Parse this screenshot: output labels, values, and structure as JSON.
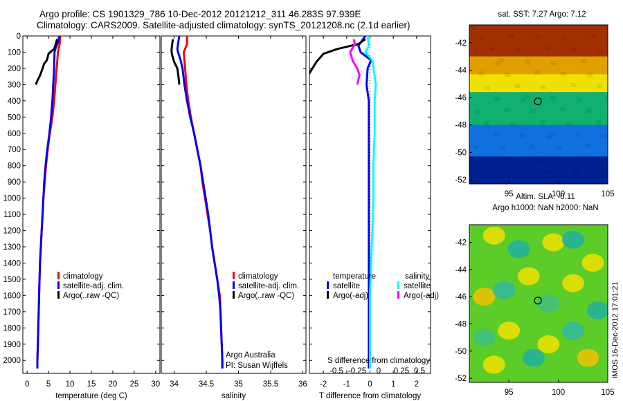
{
  "header": {
    "title_line1": "Argo profile: CS 1901329_786 10-Dec-2012 20121212_311 46.283S 97.939E",
    "title_line2": "Climatology: CARS2009. Satellite-adjusted climatology: synTS_20121208.nc (2.1d earlier)"
  },
  "side_note": "IMOS 16-Dec-2012 17:01:21",
  "colors": {
    "climatology": "#ff0000",
    "satellite": "#0000ff",
    "argo": "#000000",
    "sal_satellite": "#00ffff",
    "sal_argo": "#ff00ff"
  },
  "chart_data": [
    {
      "id": "temperature",
      "type": "line",
      "xlabel": "temperature (deg C)",
      "xlim": [
        -1,
        31
      ],
      "ylim": [
        0,
        2080
      ],
      "y_reversed": true,
      "xticks": [
        0,
        5,
        10,
        15,
        20,
        25,
        30
      ],
      "xtick_labels": [
        "0",
        "5",
        "10",
        "15",
        "20",
        "25",
        "30"
      ],
      "yticks": [
        0,
        100,
        200,
        300,
        400,
        500,
        600,
        700,
        800,
        900,
        1000,
        1100,
        1200,
        1300,
        1400,
        1500,
        1600,
        1700,
        1800,
        1900,
        2000
      ],
      "ytick_labels": [
        "0",
        "100",
        "200",
        "300",
        "400",
        "500",
        "600",
        "700",
        "800",
        "900",
        "1000",
        "1100",
        "1200",
        "1300",
        "1400",
        "1500",
        "1600",
        "1700",
        "1800",
        "1900",
        "2000"
      ],
      "legend": [
        "climatology",
        "satellite-adj. clim.",
        "Argo(..raw -QC)"
      ],
      "series": [
        {
          "name": "climatology",
          "color": "climatology",
          "points": [
            [
              7.7,
              0
            ],
            [
              7.6,
              50
            ],
            [
              7.2,
              100
            ],
            [
              6.9,
              200
            ],
            [
              6.6,
              300
            ],
            [
              6.3,
              400
            ],
            [
              5.9,
              500
            ],
            [
              5.3,
              600
            ],
            [
              4.8,
              700
            ],
            [
              4.4,
              800
            ],
            [
              4.1,
              900
            ],
            [
              3.8,
              1000
            ],
            [
              3.6,
              1100
            ],
            [
              3.4,
              1200
            ],
            [
              3.2,
              1300
            ],
            [
              3.0,
              1400
            ],
            [
              2.9,
              1500
            ],
            [
              2.8,
              1600
            ],
            [
              2.7,
              1700
            ],
            [
              2.6,
              1800
            ],
            [
              2.5,
              1900
            ],
            [
              2.4,
              2000
            ],
            [
              2.4,
              2050
            ]
          ]
        },
        {
          "name": "satellite-adj. clim.",
          "color": "satellite",
          "points": [
            [
              7.5,
              0
            ],
            [
              7.3,
              30
            ],
            [
              6.9,
              60
            ],
            [
              6.6,
              80
            ],
            [
              6.4,
              100
            ],
            [
              6.3,
              200
            ],
            [
              6.1,
              300
            ],
            [
              5.9,
              400
            ],
            [
              5.6,
              500
            ],
            [
              5.2,
              600
            ],
            [
              4.7,
              700
            ],
            [
              4.3,
              800
            ],
            [
              4.0,
              900
            ],
            [
              3.8,
              1000
            ],
            [
              3.6,
              1100
            ],
            [
              3.4,
              1200
            ],
            [
              3.2,
              1300
            ],
            [
              3.0,
              1400
            ],
            [
              2.9,
              1500
            ],
            [
              2.8,
              1600
            ],
            [
              2.7,
              1700
            ],
            [
              2.6,
              1800
            ],
            [
              2.5,
              1900
            ],
            [
              2.4,
              2000
            ],
            [
              2.4,
              2050
            ]
          ]
        },
        {
          "name": "Argo(..raw -QC)",
          "color": "argo",
          "points": [
            [
              7.0,
              20
            ],
            [
              6.7,
              50
            ],
            [
              6.3,
              80
            ],
            [
              5.4,
              100
            ],
            [
              5.0,
              110
            ],
            [
              4.6,
              150
            ],
            [
              4.0,
              170
            ],
            [
              3.6,
              200
            ],
            [
              3.2,
              230
            ],
            [
              2.9,
              250
            ],
            [
              2.5,
              270
            ],
            [
              2.0,
              300
            ]
          ]
        }
      ]
    },
    {
      "id": "salinity",
      "type": "line",
      "xlabel": "salinity",
      "xlim": [
        33.8,
        36.05
      ],
      "ylim": [
        0,
        2080
      ],
      "y_reversed": true,
      "xticks": [
        34,
        34.5,
        35,
        35.5,
        36
      ],
      "xtick_labels": [
        "34",
        "34.5",
        "35",
        "35.5",
        "36"
      ],
      "legend": [
        "climatology",
        "satellite-adj. clim.",
        "Argo(..raw -QC)"
      ],
      "annotation": [
        "Argo Australia",
        "PI: Susan Wijffels"
      ],
      "series": [
        {
          "name": "climatology",
          "color": "climatology",
          "points": [
            [
              34.2,
              0
            ],
            [
              34.2,
              50
            ],
            [
              34.15,
              100
            ],
            [
              34.16,
              150
            ],
            [
              34.17,
              200
            ],
            [
              34.19,
              300
            ],
            [
              34.22,
              400
            ],
            [
              34.26,
              500
            ],
            [
              34.31,
              600
            ],
            [
              34.36,
              700
            ],
            [
              34.41,
              800
            ],
            [
              34.44,
              900
            ],
            [
              34.48,
              1000
            ],
            [
              34.52,
              1100
            ],
            [
              34.56,
              1200
            ],
            [
              34.59,
              1300
            ],
            [
              34.63,
              1400
            ],
            [
              34.67,
              1500
            ],
            [
              34.71,
              1600
            ],
            [
              34.72,
              1700
            ],
            [
              34.73,
              1800
            ],
            [
              34.74,
              1900
            ],
            [
              34.75,
              2000
            ],
            [
              34.75,
              2050
            ]
          ]
        },
        {
          "name": "satellite-adj. clim.",
          "color": "satellite",
          "points": [
            [
              34.08,
              0
            ],
            [
              34.06,
              50
            ],
            [
              34.05,
              80
            ],
            [
              34.06,
              100
            ],
            [
              34.1,
              150
            ],
            [
              34.13,
              200
            ],
            [
              34.16,
              300
            ],
            [
              34.2,
              400
            ],
            [
              34.25,
              500
            ],
            [
              34.31,
              600
            ],
            [
              34.36,
              700
            ],
            [
              34.41,
              800
            ],
            [
              34.45,
              900
            ],
            [
              34.49,
              1000
            ],
            [
              34.53,
              1100
            ],
            [
              34.56,
              1200
            ],
            [
              34.59,
              1300
            ],
            [
              34.63,
              1400
            ],
            [
              34.67,
              1500
            ],
            [
              34.7,
              1600
            ],
            [
              34.72,
              1700
            ],
            [
              34.73,
              1800
            ],
            [
              34.74,
              1900
            ],
            [
              34.75,
              2000
            ],
            [
              34.75,
              2050
            ]
          ]
        },
        {
          "name": "Argo(..raw -QC)",
          "color": "argo",
          "points": [
            [
              33.98,
              20
            ],
            [
              33.97,
              50
            ],
            [
              33.96,
              80
            ],
            [
              33.96,
              100
            ],
            [
              33.97,
              120
            ],
            [
              34.0,
              160
            ],
            [
              34.05,
              200
            ],
            [
              34.06,
              230
            ],
            [
              34.07,
              260
            ],
            [
              34.08,
              300
            ]
          ]
        }
      ]
    },
    {
      "id": "difference",
      "type": "line",
      "xlabel": "T difference from climatology",
      "xlabel_top": "S difference from climatology",
      "xlim": [
        -2.6,
        2.6
      ],
      "ylim": [
        0,
        2080
      ],
      "y_reversed": true,
      "xticks": [
        -2,
        -1,
        0,
        1,
        2
      ],
      "xtick_labels": [
        "-2",
        "-1",
        "0",
        "1",
        "2"
      ],
      "s_ticks": [
        "-0.5",
        "-0.25",
        "0",
        "0.25",
        "0.5"
      ],
      "legend_temperature_title": "temperature",
      "legend_salinity_title": "salinity",
      "legend_temperature": [
        "satellite",
        "Argo(-adj)"
      ],
      "legend_salinity": [
        "satellite",
        "Argo(-adj)"
      ],
      "series": [
        {
          "name": "satellite",
          "color": "satellite",
          "points": [
            [
              -0.2,
              0
            ],
            [
              -0.5,
              60
            ],
            [
              -0.4,
              100
            ],
            [
              0.05,
              150
            ],
            [
              -0.1,
              200
            ],
            [
              -0.15,
              300
            ],
            [
              -0.05,
              400
            ],
            [
              -0.05,
              500
            ],
            [
              -0.05,
              600
            ],
            [
              -0.05,
              800
            ],
            [
              -0.05,
              1000
            ],
            [
              -0.05,
              1200
            ],
            [
              -0.05,
              1400
            ],
            [
              -0.05,
              1600
            ],
            [
              -0.05,
              1800
            ],
            [
              -0.05,
              2050
            ]
          ]
        },
        {
          "name": "Argo(-adj)",
          "color": "argo",
          "points": [
            [
              -0.2,
              20
            ],
            [
              -0.5,
              50
            ],
            [
              -1.4,
              80
            ],
            [
              -2.0,
              110
            ],
            [
              -2.3,
              160
            ],
            [
              -2.6,
              230
            ],
            [
              -2.9,
              300
            ]
          ]
        },
        {
          "name": "satellite",
          "color": "sal_satellite",
          "points": [
            [
              -0.1,
              0
            ],
            [
              -0.05,
              60
            ],
            [
              -0.2,
              100
            ],
            [
              0.1,
              150
            ],
            [
              0.25,
              300
            ],
            [
              0.2,
              400
            ],
            [
              0.2,
              600
            ],
            [
              0.15,
              800
            ],
            [
              0.15,
              1000
            ],
            [
              0.1,
              1200
            ],
            [
              0.05,
              1400
            ],
            [
              0.0,
              1600
            ],
            [
              0.0,
              1800
            ],
            [
              0.0,
              2050
            ]
          ]
        },
        {
          "name": "Argo(-adj)",
          "color": "sal_argo",
          "points": [
            [
              -0.7,
              20
            ],
            [
              -0.65,
              50
            ],
            [
              -0.85,
              100
            ],
            [
              -0.75,
              150
            ],
            [
              -0.55,
              200
            ],
            [
              -0.45,
              240
            ],
            [
              -0.55,
              300
            ]
          ]
        }
      ]
    },
    {
      "id": "sst_map",
      "type": "heatmap",
      "title": "sat. SST: 7.27 Argo: 7.12",
      "xlim": [
        91,
        105
      ],
      "ylim": [
        -52.3,
        -40.7
      ],
      "xticks": [
        95,
        100,
        105
      ],
      "xtick_labels": [
        "95",
        "100",
        "105"
      ],
      "yticks": [
        -42,
        -44,
        -46,
        -48,
        -50,
        -52
      ],
      "ytick_labels": [
        "-42",
        "-44",
        "-46",
        "-48",
        "-50",
        "-52"
      ],
      "marker": [
        97.939,
        -46.283
      ],
      "bands": [
        {
          "from": -40.7,
          "to": -43.0,
          "color": "#a03000"
        },
        {
          "from": -43.0,
          "to": -44.3,
          "color": "#e0a000"
        },
        {
          "from": -44.3,
          "to": -45.6,
          "color": "#f0e000"
        },
        {
          "from": -45.6,
          "to": -48.0,
          "color": "#10b070"
        },
        {
          "from": -48.0,
          "to": -50.3,
          "color": "#1070e0"
        },
        {
          "from": -50.3,
          "to": -52.3,
          "color": "#002090"
        }
      ]
    },
    {
      "id": "sla_map",
      "type": "heatmap",
      "title": "Altim. SLA: -0.11",
      "subtitle": "Argo h1000: NaN h2000: NaN",
      "xlim": [
        91,
        105
      ],
      "ylim": [
        -52.3,
        -40.7
      ],
      "xticks": [
        95,
        100,
        105
      ],
      "xtick_labels": [
        "95",
        "100",
        "105"
      ],
      "yticks": [
        -42,
        -44,
        -46,
        -48,
        -50,
        -52
      ],
      "ytick_labels": [
        "-42",
        "-44",
        "-46",
        "-48",
        "-50",
        "-52"
      ],
      "marker": [
        97.939,
        -46.283
      ],
      "background_color": "#5ccc28",
      "blobs": [
        {
          "lon": 93.5,
          "lat": -41.5,
          "color": "#f0e000"
        },
        {
          "lon": 99.5,
          "lat": -42.0,
          "color": "#f0e000"
        },
        {
          "lon": 103.5,
          "lat": -43.5,
          "color": "#f0e000"
        },
        {
          "lon": 97.0,
          "lat": -44.5,
          "color": "#f0e000"
        },
        {
          "lon": 92.5,
          "lat": -46.0,
          "color": "#f0c000"
        },
        {
          "lon": 101.5,
          "lat": -45.0,
          "color": "#f0e000"
        },
        {
          "lon": 95.0,
          "lat": -48.5,
          "color": "#f0e000"
        },
        {
          "lon": 99.0,
          "lat": -49.5,
          "color": "#f0e000"
        },
        {
          "lon": 103.0,
          "lat": -50.5,
          "color": "#f0c000"
        },
        {
          "lon": 93.5,
          "lat": -51.0,
          "color": "#f0e000"
        },
        {
          "lon": 96.0,
          "lat": -42.5,
          "color": "#20b0a0"
        },
        {
          "lon": 101.5,
          "lat": -41.8,
          "color": "#20b0a0"
        },
        {
          "lon": 94.5,
          "lat": -45.5,
          "color": "#30b8a0"
        },
        {
          "lon": 99.0,
          "lat": -46.5,
          "color": "#40c080"
        },
        {
          "lon": 104.0,
          "lat": -47.0,
          "color": "#20b0a0"
        },
        {
          "lon": 97.5,
          "lat": -50.5,
          "color": "#20b0a0"
        },
        {
          "lon": 101.5,
          "lat": -48.5,
          "color": "#30b8a0"
        },
        {
          "lon": 92.5,
          "lat": -49.0,
          "color": "#40c080"
        }
      ]
    }
  ]
}
